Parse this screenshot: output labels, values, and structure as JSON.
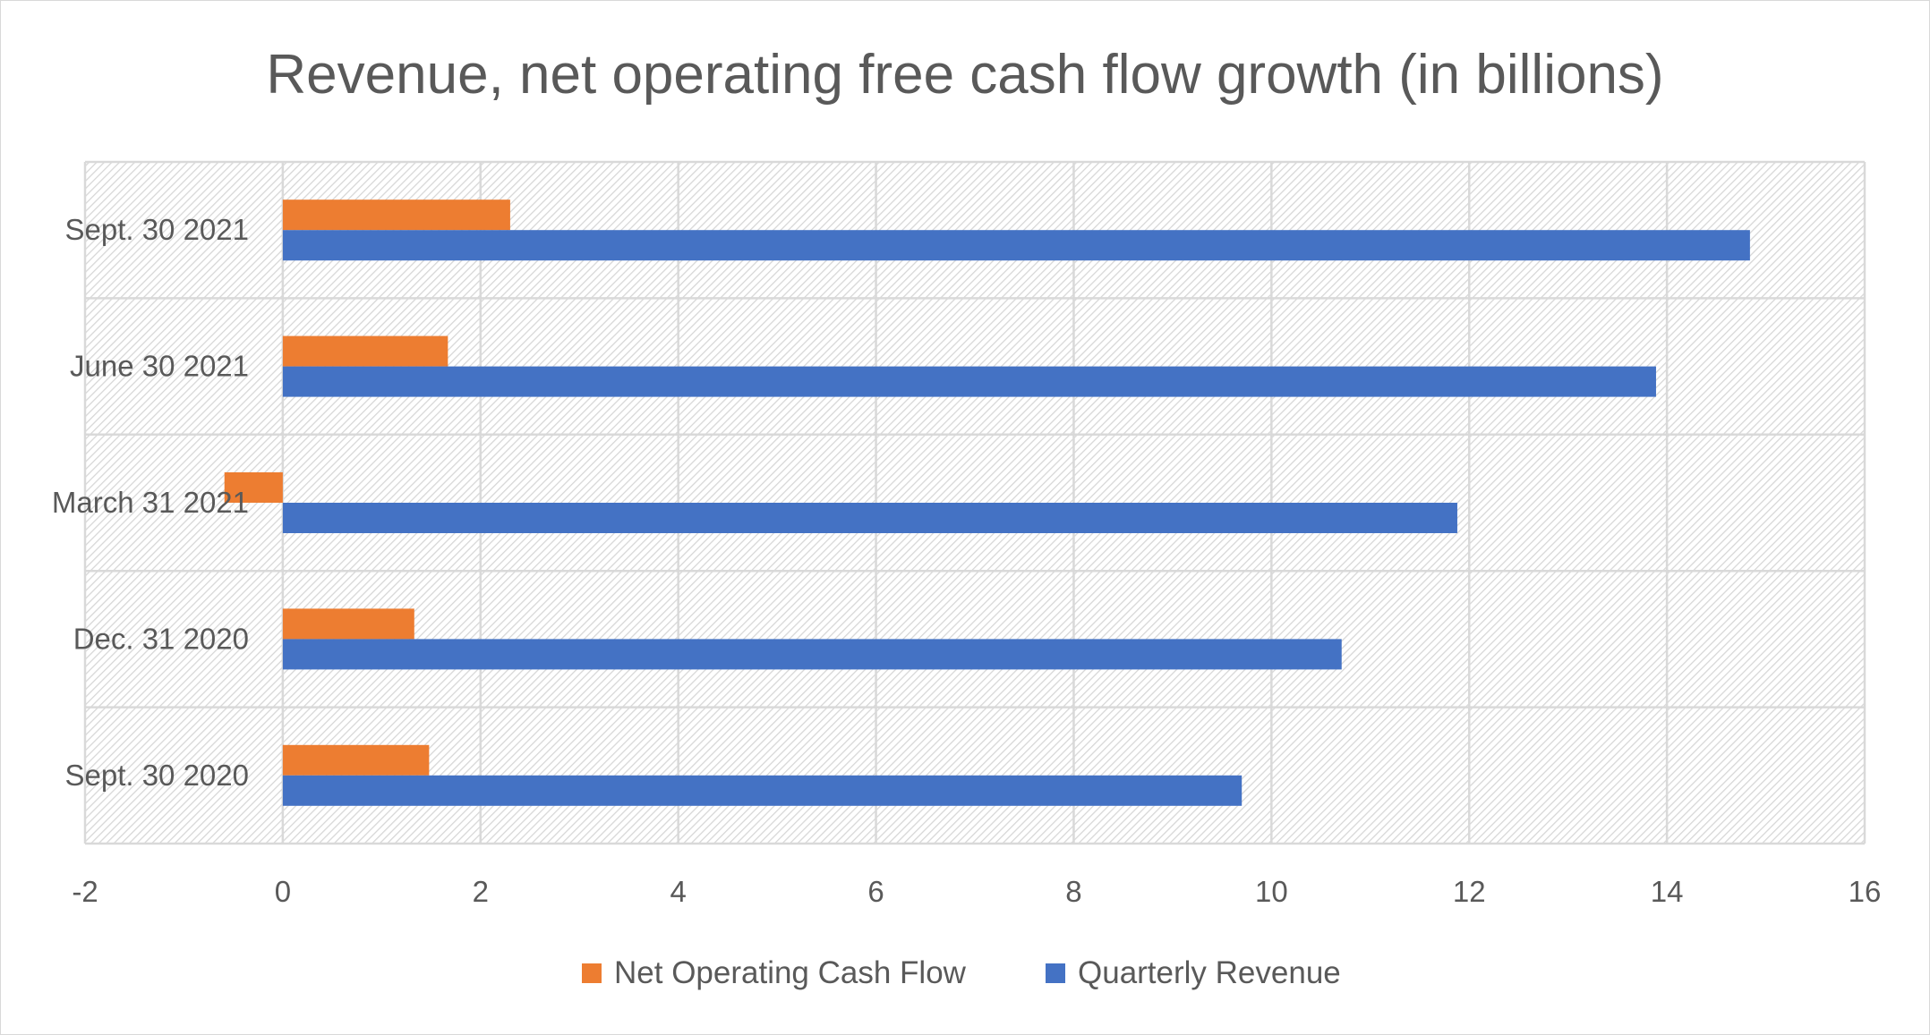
{
  "chart_data": {
    "type": "bar",
    "orientation": "horizontal",
    "title": "Revenue, net operating free cash flow growth (in billions)",
    "categories": [
      "Sept. 30 2021",
      "June 30 2021",
      "March 31 2021",
      "Dec. 31 2020",
      "Sept. 30 2020"
    ],
    "series": [
      {
        "name": "Net Operating Cash Flow",
        "color": "#ED7D31",
        "values": [
          2.3,
          1.67,
          -0.59,
          1.33,
          1.48
        ]
      },
      {
        "name": "Quarterly Revenue",
        "color": "#4472C4",
        "values": [
          14.84,
          13.89,
          11.88,
          10.71,
          9.7
        ]
      }
    ],
    "xlim": [
      -2,
      16
    ],
    "xticks": [
      "-2",
      "0",
      "2",
      "4",
      "6",
      "8",
      "10",
      "12",
      "14",
      "16"
    ],
    "xlabel": "",
    "ylabel": "",
    "grid": true,
    "legend": "bottom"
  }
}
